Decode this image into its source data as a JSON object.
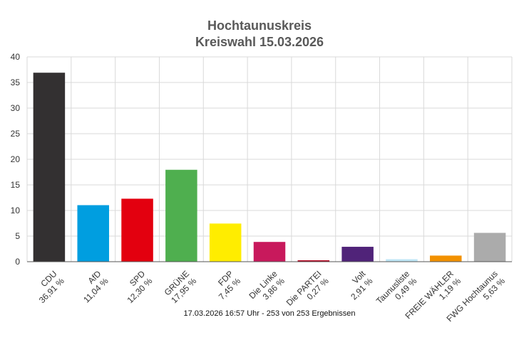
{
  "chart_data": {
    "type": "bar",
    "title": "Hochtaunuskreis",
    "subtitle": "Kreiswahl 15.03.2026",
    "ylim": [
      0,
      40
    ],
    "yticks": [
      0,
      5,
      10,
      15,
      20,
      25,
      30,
      35,
      40
    ],
    "grid": true,
    "categories": [
      "CDU",
      "AfD",
      "SPD",
      "GRÜNE",
      "FDP",
      "Die Linke",
      "Die PARTEI",
      "Volt",
      "Taunusliste",
      "FREIE WÄHLER",
      "FWG Hochtaunus"
    ],
    "value_labels": [
      "36,91 %",
      "11,04 %",
      "12,30 %",
      "17,95 %",
      "7,45 %",
      "3,86 %",
      "0,27 %",
      "2,91 %",
      "0,49 %",
      "1,19 %",
      "5,63 %"
    ],
    "values": [
      36.91,
      11.04,
      12.3,
      17.95,
      7.45,
      3.86,
      0.27,
      2.91,
      0.49,
      1.19,
      5.63
    ],
    "colors": [
      "#333031",
      "#009EE0",
      "#E3000F",
      "#4FAF4F",
      "#FFED00",
      "#C8195C",
      "#B5001D",
      "#502379",
      "#BFE6F5",
      "#F29100",
      "#ABABAB"
    ],
    "footer": "17.03.2026 16:57 Uhr - 253 von 253 Ergebnissen"
  }
}
